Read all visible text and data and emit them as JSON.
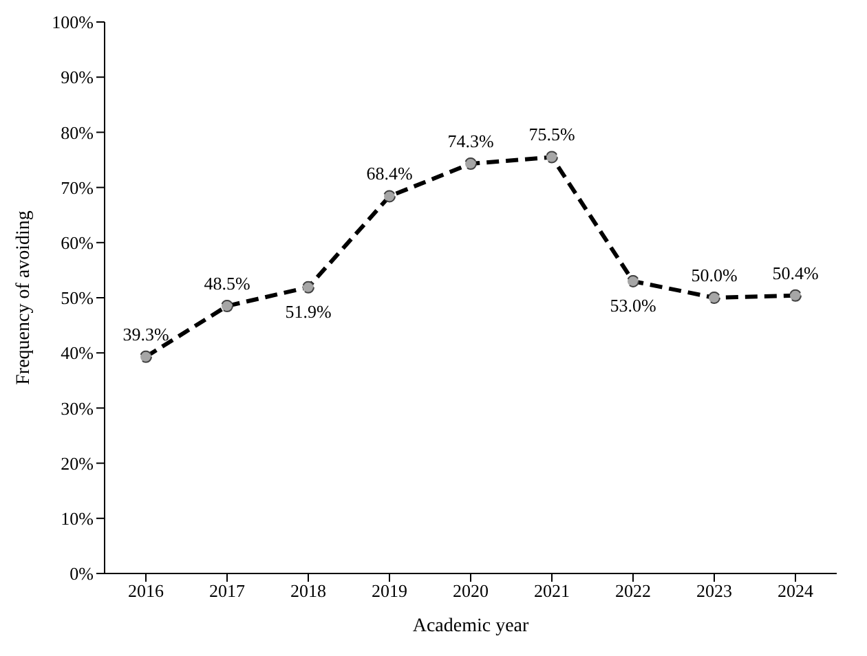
{
  "chart_data": {
    "type": "line",
    "xlabel": "Academic year",
    "ylabel": "Frequency of avoiding",
    "categories": [
      "2016",
      "2017",
      "2018",
      "2019",
      "2020",
      "2021",
      "2022",
      "2023",
      "2024"
    ],
    "series": [
      {
        "color": "#000000",
        "values": [
          39.3,
          48.5,
          51.9,
          68.4,
          74.3,
          75.5,
          53.0,
          50.0,
          50.4
        ],
        "value_labels": [
          "39.3%",
          "48.5%",
          "51.9%",
          "68.4%",
          "74.3%",
          "75.5%",
          "53.0%",
          "50.0%",
          "50.4%"
        ]
      }
    ],
    "ylim": [
      0,
      100
    ],
    "yticks": [
      {
        "value": 0,
        "label": "0%"
      },
      {
        "value": 10,
        "label": "10%"
      },
      {
        "value": 20,
        "label": "20%"
      },
      {
        "value": 30,
        "label": "30%"
      },
      {
        "value": 40,
        "label": "40%"
      },
      {
        "value": 50,
        "label": "50%"
      },
      {
        "value": 60,
        "label": "60%"
      },
      {
        "value": 70,
        "label": "70%"
      },
      {
        "value": 80,
        "label": "80%"
      },
      {
        "value": 90,
        "label": "90%"
      },
      {
        "value": 100,
        "label": "100%"
      }
    ],
    "grid": false,
    "legend": false,
    "marker": "circle",
    "line_style": "dashed"
  }
}
